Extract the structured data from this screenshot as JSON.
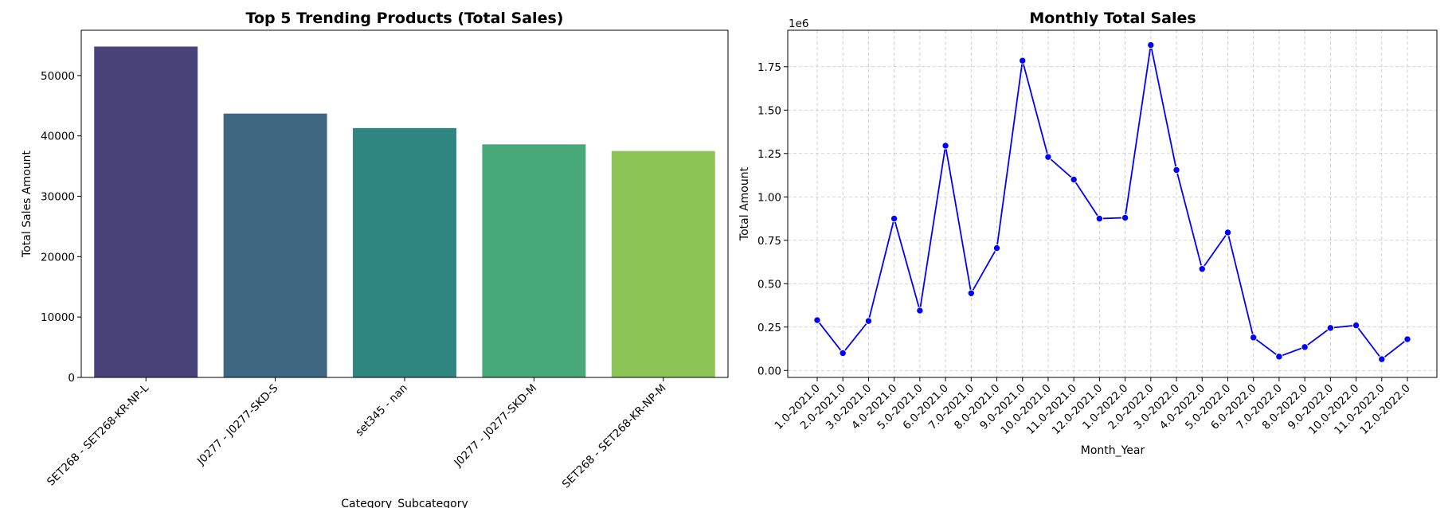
{
  "chart_data": [
    {
      "type": "bar",
      "title": "Top 5 Trending Products (Total Sales)",
      "xlabel": "Category_Subcategory",
      "ylabel": "Total Sales Amount",
      "categories": [
        "SET268 - SET268-KR-NP-L",
        "J0277 - J0277-SKD-S",
        "set345 - nan",
        "J0277 - J0277-SKD-M",
        "SET268 - SET268-KR-NP-M"
      ],
      "values": [
        54800,
        43700,
        41300,
        38600,
        37500
      ],
      "colors": [
        "#4a437a",
        "#3d6780",
        "#2f857f",
        "#47a878",
        "#8cc556"
      ],
      "ylim": [
        0,
        57500
      ],
      "yticks": [
        "0",
        "10000",
        "20000",
        "30000",
        "40000",
        "50000"
      ],
      "grid": false
    },
    {
      "type": "line",
      "title": "Monthly Total Sales",
      "xlabel": "Month_Year",
      "ylabel": "Total Amount",
      "y_offset_label": "1e6",
      "categories": [
        "1.0-2021.0",
        "2.0-2021.0",
        "3.0-2021.0",
        "4.0-2021.0",
        "5.0-2021.0",
        "6.0-2021.0",
        "7.0-2021.0",
        "8.0-2021.0",
        "9.0-2021.0",
        "10.0-2021.0",
        "11.0-2021.0",
        "12.0-2021.0",
        "1.0-2022.0",
        "2.0-2022.0",
        "3.0-2022.0",
        "4.0-2022.0",
        "5.0-2022.0",
        "6.0-2022.0",
        "7.0-2022.0",
        "8.0-2022.0",
        "9.0-2022.0",
        "10.0-2022.0",
        "11.0-2022.0",
        "12.0-2022.0"
      ],
      "series": [
        {
          "values": [
            290000,
            100000,
            285000,
            875000,
            345000,
            1295000,
            445000,
            705000,
            1785000,
            1230000,
            1100000,
            875000,
            880000,
            1875000,
            1155000,
            585000,
            795000,
            190000,
            80000,
            135000,
            245000,
            260000,
            65000,
            180000
          ],
          "color": "#0000ff"
        }
      ],
      "ylim": [
        -40000,
        1960000
      ],
      "yticks": [
        "0.00",
        "0.25",
        "0.50",
        "0.75",
        "1.00",
        "1.25",
        "1.50",
        "1.75"
      ],
      "grid": true
    }
  ]
}
